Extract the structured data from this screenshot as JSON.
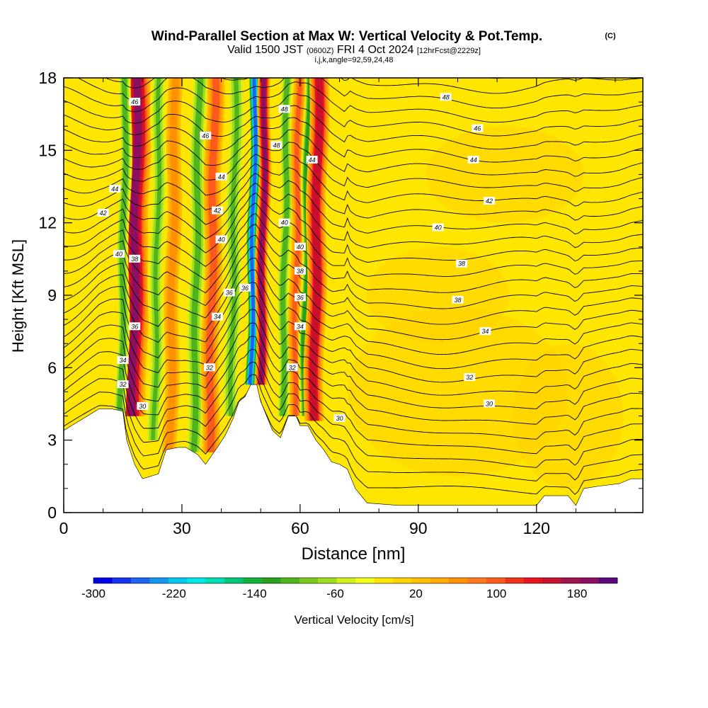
{
  "header": {
    "title_main": "Wind-Parallel Section at Max W: Vertical Velocity & Pot.Temp.",
    "title_mark": "(C)",
    "valid_a": "Valid 1500 JST",
    "valid_b": "(0600Z)",
    "valid_c": "FRI 4 Oct 2024",
    "valid_d": "[12hrFcst@2229z]",
    "subtitle": "i,j,k,angle=92,59,24,48"
  },
  "chart_data": {
    "type": "heatmap",
    "title": "Wind-Parallel Section at Max W: Vertical Velocity & Pot.Temp.",
    "xlabel": "Distance [nm]",
    "ylabel": "Height [Kft MSL]",
    "xlim": [
      0,
      147
    ],
    "ylim": [
      0,
      18
    ],
    "x_ticks": [
      0,
      30,
      60,
      90,
      120
    ],
    "y_ticks": [
      0,
      3,
      6,
      9,
      12,
      15,
      18
    ],
    "grid": false,
    "colorbar": {
      "label": "Vertical Velocity [cm/s]",
      "tick_labels": [
        "-300",
        "-220",
        "-140",
        "-60",
        "20",
        "100",
        "180"
      ],
      "min": -300,
      "max": 220,
      "colors": [
        "#0000e6",
        "#1432f0",
        "#1e64f0",
        "#1496f0",
        "#00c8f0",
        "#00e6e6",
        "#00dcb4",
        "#00c878",
        "#14b43c",
        "#28a01e",
        "#50b41e",
        "#78c81e",
        "#a0dc1e",
        "#d2f01e",
        "#f5ff1e",
        "#ffe600",
        "#ffd200",
        "#ffbe00",
        "#ffaa00",
        "#ff9100",
        "#ff781e",
        "#ff5a1e",
        "#f03219",
        "#e6141e",
        "#c80f2d",
        "#a01450",
        "#8c0f64",
        "#5a0a7d"
      ]
    },
    "velocity_features": [
      {
        "kind": "updraft",
        "x": 17.5,
        "width": 3.5,
        "y_base": 4.0,
        "peak": 190
      },
      {
        "kind": "downdraft",
        "x": 14.5,
        "width": 1.6,
        "y_base": 4.0,
        "peak": -120
      },
      {
        "kind": "downdraft",
        "x": 23.0,
        "width": 2.0,
        "y_base": 3.0,
        "peak": -100
      },
      {
        "kind": "updraft",
        "x": 27.0,
        "width": 1.8,
        "y_base": 2.5,
        "peak": 90
      },
      {
        "kind": "downdraft",
        "x": 33.0,
        "width": 2.2,
        "y_base": 2.5,
        "peak": -110
      },
      {
        "kind": "updraft",
        "x": 37.0,
        "width": 2.2,
        "y_base": 2.5,
        "peak": 120
      },
      {
        "kind": "downdraft",
        "x": 42.5,
        "width": 2.2,
        "y_base": 4.0,
        "peak": -100
      },
      {
        "kind": "downdraft",
        "x": 47.5,
        "width": 1.5,
        "y_base": 5.3,
        "peak": -260
      },
      {
        "kind": "updraft",
        "x": 50.0,
        "width": 1.6,
        "y_base": 5.3,
        "peak": 200
      },
      {
        "kind": "downdraft",
        "x": 55.5,
        "width": 1.6,
        "y_base": 4.0,
        "peak": -120
      },
      {
        "kind": "updraft",
        "x": 58.5,
        "width": 1.6,
        "y_base": 4.0,
        "peak": 110
      },
      {
        "kind": "downdraft",
        "x": 61.0,
        "width": 1.4,
        "y_base": 4.0,
        "peak": -150
      },
      {
        "kind": "updraft",
        "x": 63.5,
        "width": 2.5,
        "y_base": 3.8,
        "peak": 170
      },
      {
        "kind": "downdraft",
        "x": 70.0,
        "width": 2.5,
        "y_base": 3.0,
        "peak": -40
      }
    ],
    "theta_labels": [
      {
        "value": "46",
        "x": 18,
        "y": 17.0
      },
      {
        "value": "48",
        "x": 56,
        "y": 16.7
      },
      {
        "value": "48",
        "x": 97,
        "y": 17.2
      },
      {
        "value": "46",
        "x": 36,
        "y": 15.6
      },
      {
        "value": "48",
        "x": 54,
        "y": 15.2
      },
      {
        "value": "46",
        "x": 105,
        "y": 15.9
      },
      {
        "value": "44",
        "x": 63,
        "y": 14.6
      },
      {
        "value": "44",
        "x": 104,
        "y": 14.6
      },
      {
        "value": "44",
        "x": 40,
        "y": 13.9
      },
      {
        "value": "44",
        "x": 13,
        "y": 13.4
      },
      {
        "value": "42",
        "x": 108,
        "y": 12.9
      },
      {
        "value": "42",
        "x": 39,
        "y": 12.5
      },
      {
        "value": "42",
        "x": 10,
        "y": 12.4
      },
      {
        "value": "40",
        "x": 56,
        "y": 12.0
      },
      {
        "value": "40",
        "x": 95,
        "y": 11.8
      },
      {
        "value": "40",
        "x": 40,
        "y": 11.3
      },
      {
        "value": "40",
        "x": 60,
        "y": 11.0
      },
      {
        "value": "40",
        "x": 14,
        "y": 10.7
      },
      {
        "value": "38",
        "x": 18,
        "y": 10.5
      },
      {
        "value": "38",
        "x": 101,
        "y": 10.3
      },
      {
        "value": "38",
        "x": 60,
        "y": 10.0
      },
      {
        "value": "36",
        "x": 46,
        "y": 9.3
      },
      {
        "value": "36",
        "x": 42,
        "y": 9.1
      },
      {
        "value": "36",
        "x": 60,
        "y": 8.9
      },
      {
        "value": "38",
        "x": 100,
        "y": 8.8
      },
      {
        "value": "34",
        "x": 39,
        "y": 8.1
      },
      {
        "value": "34",
        "x": 60,
        "y": 7.7
      },
      {
        "value": "34",
        "x": 107,
        "y": 7.5
      },
      {
        "value": "36",
        "x": 18,
        "y": 7.7
      },
      {
        "value": "34",
        "x": 15,
        "y": 6.3
      },
      {
        "value": "32",
        "x": 37,
        "y": 6.0
      },
      {
        "value": "32",
        "x": 58,
        "y": 6.0
      },
      {
        "value": "32",
        "x": 103,
        "y": 5.6
      },
      {
        "value": "32",
        "x": 15,
        "y": 5.3
      },
      {
        "value": "30",
        "x": 20,
        "y": 4.4
      },
      {
        "value": "30",
        "x": 108,
        "y": 4.5
      },
      {
        "value": "30",
        "x": 70,
        "y": 3.9
      }
    ],
    "terrain_height": [
      [
        0,
        3.4
      ],
      [
        3,
        3.7
      ],
      [
        6,
        4.0
      ],
      [
        9,
        4.3
      ],
      [
        12,
        4.3
      ],
      [
        15,
        4.2
      ],
      [
        16,
        3.0
      ],
      [
        18,
        2.0
      ],
      [
        20,
        1.4
      ],
      [
        24,
        1.6
      ],
      [
        26,
        2.6
      ],
      [
        29,
        2.7
      ],
      [
        31,
        2.7
      ],
      [
        34,
        2.4
      ],
      [
        36,
        2.0
      ],
      [
        39,
        2.7
      ],
      [
        41,
        3.2
      ],
      [
        43,
        3.9
      ],
      [
        44.5,
        4.6
      ],
      [
        46,
        4.8
      ],
      [
        47.5,
        5.3
      ],
      [
        49,
        5.3
      ],
      [
        50,
        4.6
      ],
      [
        51,
        4.2
      ],
      [
        53,
        3.4
      ],
      [
        55,
        3.1
      ],
      [
        57,
        4.0
      ],
      [
        59,
        4.0
      ],
      [
        60,
        3.6
      ],
      [
        62,
        3.6
      ],
      [
        64,
        3.0
      ],
      [
        66,
        2.6
      ],
      [
        68,
        2.1
      ],
      [
        70,
        2.0
      ],
      [
        72,
        1.8
      ],
      [
        74,
        1.0
      ],
      [
        77,
        0.4
      ],
      [
        85,
        0.3
      ],
      [
        120,
        0.3
      ],
      [
        122,
        0.7
      ],
      [
        128,
        0.7
      ],
      [
        130,
        0.3
      ],
      [
        132,
        1.0
      ],
      [
        136,
        1.1
      ],
      [
        141,
        1.2
      ],
      [
        144,
        1.4
      ],
      [
        147,
        1.4
      ]
    ]
  }
}
